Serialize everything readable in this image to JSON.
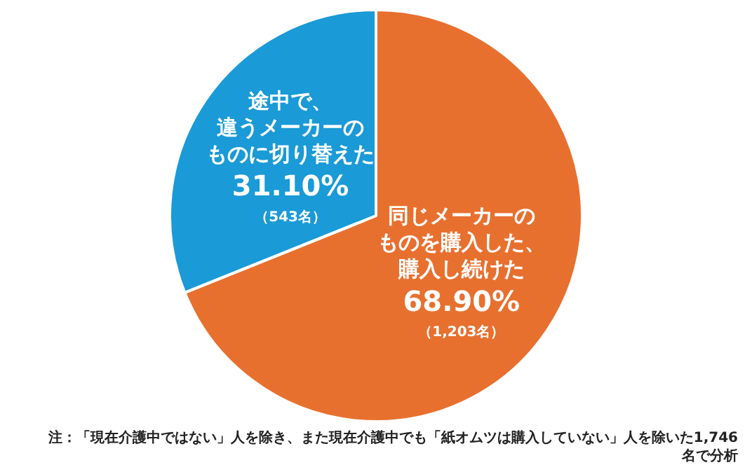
{
  "chart_data": {
    "type": "pie",
    "categories": [
      "同じメーカーのものを購入した、購入し続けた",
      "途中で、違うメーカーのものに切り替えた"
    ],
    "values": [
      68.9,
      31.1
    ],
    "colors": [
      "#e8702f",
      "#1a9ad6"
    ],
    "value_labels": [
      "68.90%\n（1,203名）",
      "31.10%\n（543名）"
    ],
    "annotations": [
      "注：「現在介護中ではない」人を除き、また現在介護中でも「紙オムツは購入していない」人を除いた1,746名で分析"
    ],
    "legend": false
  }
}
